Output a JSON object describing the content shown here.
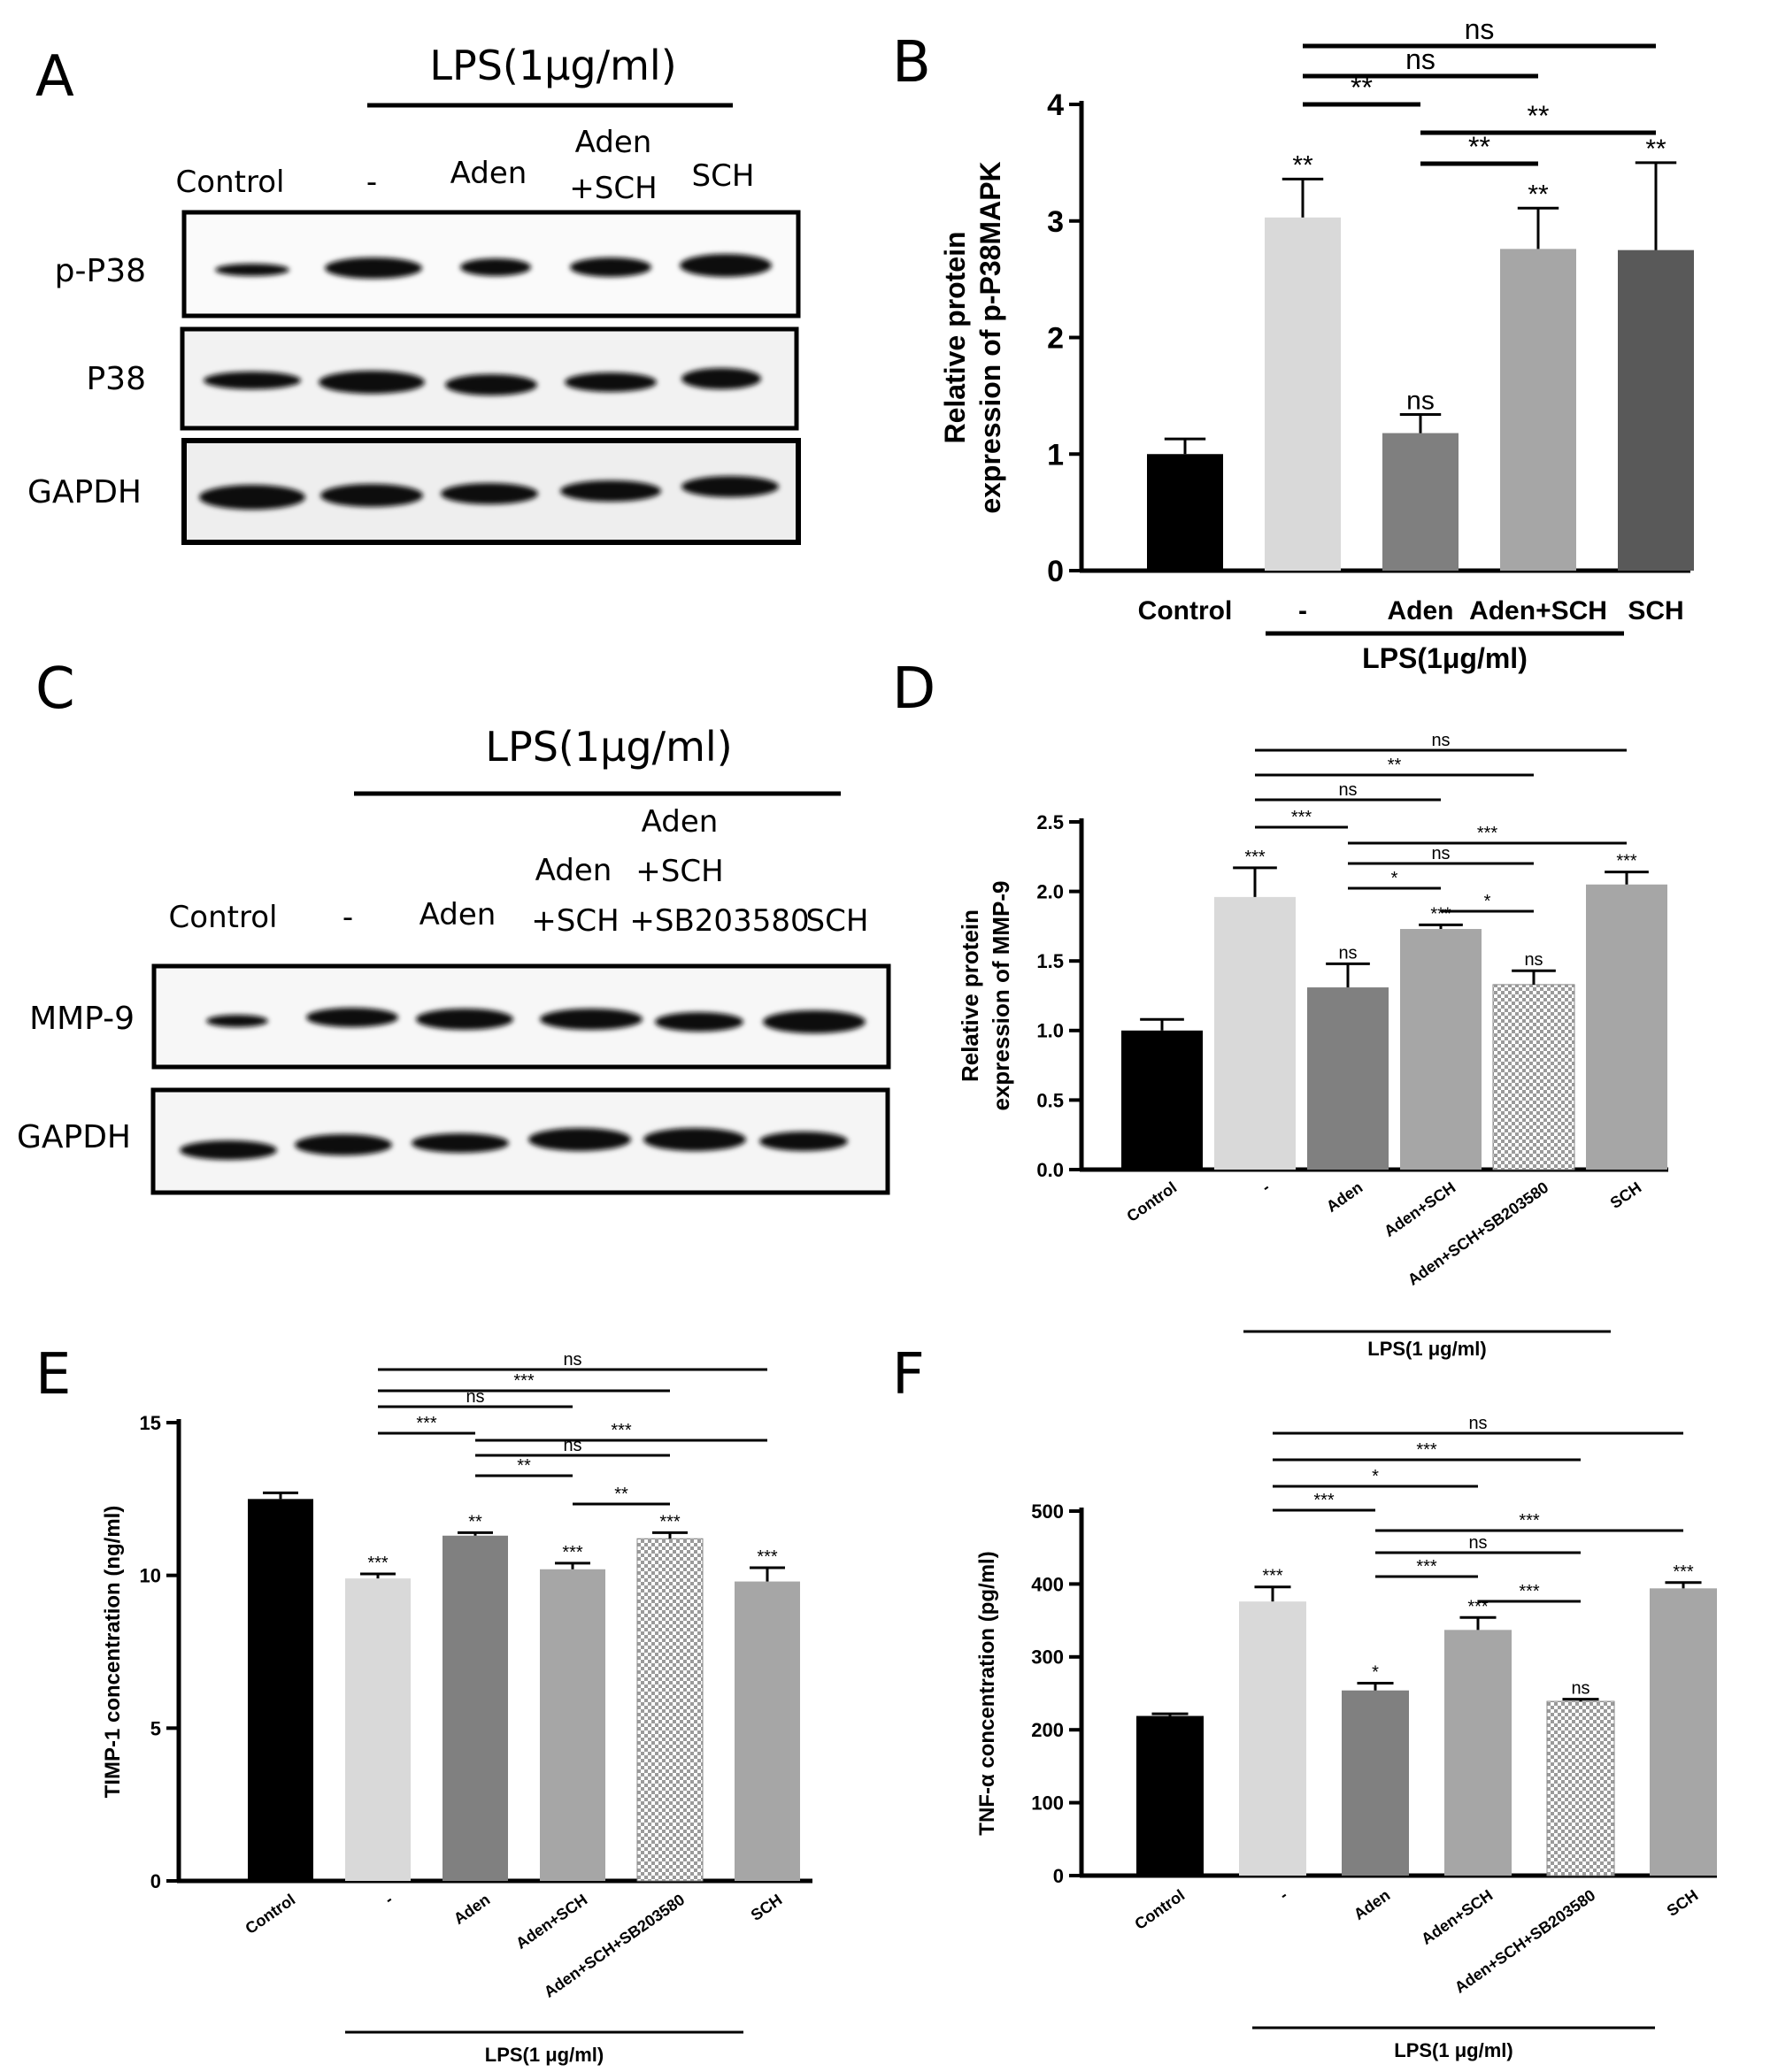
{
  "panels": {
    "A": "A",
    "B": "B",
    "C": "C",
    "D": "D",
    "E": "E",
    "F": "F"
  },
  "blotA": {
    "lps_label": "LPS(1μg/ml)",
    "columns": [
      "Control",
      "-",
      "Aden",
      "Aden",
      "+SCH",
      "SCH"
    ],
    "rows": [
      "p-P38",
      "P38",
      "GAPDH"
    ]
  },
  "blotC": {
    "lps_label": "LPS(1μg/ml)",
    "col_control": "Control",
    "col_minus": "-",
    "col_aden": "Aden",
    "col_aden_sch_1": "Aden",
    "col_aden_sch_2": "+SCH",
    "col_triple_1": "Aden",
    "col_triple_2": "+SCH",
    "col_triple_3": "+SB203580",
    "col_sch": "SCH",
    "rows": [
      "MMP-9",
      "GAPDH"
    ]
  },
  "chart_data": [
    {
      "id": "B",
      "type": "bar",
      "categories": [
        "Control",
        "-",
        "Aden",
        "Aden+SCH",
        "SCH"
      ],
      "values": [
        1.0,
        3.03,
        1.18,
        2.76,
        2.75
      ],
      "errors": [
        0.13,
        0.33,
        0.16,
        0.35,
        0.75
      ],
      "bar_colors": [
        "#000000",
        "#d9d9d9",
        "#7f7f7f",
        "#a6a6a6",
        "#595959"
      ],
      "bar_marks": [
        "",
        "**",
        "ns",
        "**",
        "**"
      ],
      "ylabel_1": "Relative protein",
      "ylabel_2": "expression of p-P38MAPK",
      "ylim": [
        0,
        4
      ],
      "yticks": [
        "0",
        "1",
        "2",
        "3",
        "4"
      ],
      "group_label": "LPS(1μg/ml)",
      "brackets": [
        {
          "from": 1,
          "to": 4,
          "label": "ns"
        },
        {
          "from": 1,
          "to": 3,
          "label": "ns"
        },
        {
          "from": 1,
          "to": 2,
          "label": "**"
        },
        {
          "from": 2,
          "to": 4,
          "label": "**"
        },
        {
          "from": 2,
          "to": 3,
          "label": "**"
        }
      ]
    },
    {
      "id": "D",
      "type": "bar",
      "categories": [
        "Control",
        "-",
        "Aden",
        "Aden+SCH",
        "Aden+SCH+SB203580",
        "SCH"
      ],
      "values": [
        1.0,
        1.96,
        1.31,
        1.73,
        1.33,
        2.05
      ],
      "errors": [
        0.08,
        0.21,
        0.17,
        0.03,
        0.1,
        0.09
      ],
      "bar_colors": [
        "#000000",
        "#d9d9d9",
        "#808080",
        "#a6a6a6",
        "checker",
        "#a6a6a6"
      ],
      "bar_marks": [
        "",
        "***",
        "ns",
        "***",
        "ns",
        "***"
      ],
      "ylabel_1": "Relative protein",
      "ylabel_2": "expression of MMP-9",
      "ylim": [
        0,
        2.5
      ],
      "yticks": [
        "0.0",
        "0.5",
        "1.0",
        "1.5",
        "2.0",
        "2.5"
      ],
      "group_label": "LPS(1 μg/ml)",
      "brackets": [
        {
          "from": 1,
          "to": 5,
          "label": "ns"
        },
        {
          "from": 1,
          "to": 4,
          "label": "**"
        },
        {
          "from": 1,
          "to": 3,
          "label": "ns"
        },
        {
          "from": 1,
          "to": 2,
          "label": "***"
        },
        {
          "from": 2,
          "to": 5,
          "label": "***"
        },
        {
          "from": 2,
          "to": 4,
          "label": "ns"
        },
        {
          "from": 2,
          "to": 3,
          "label": "*"
        },
        {
          "from": 3,
          "to": 4,
          "label": "*"
        }
      ]
    },
    {
      "id": "E",
      "type": "bar",
      "categories": [
        "Control",
        "-",
        "Aden",
        "Aden+SCH",
        "Aden+SCH+SB203580",
        "SCH"
      ],
      "values": [
        12.5,
        9.9,
        11.3,
        10.2,
        11.2,
        9.8
      ],
      "errors": [
        0.2,
        0.15,
        0.1,
        0.2,
        0.2,
        0.45
      ],
      "bar_colors": [
        "#000000",
        "#d9d9d9",
        "#808080",
        "#a6a6a6",
        "checker",
        "#a6a6a6"
      ],
      "bar_marks": [
        "",
        "***",
        "**",
        "***",
        "***",
        "***"
      ],
      "ylabel": "TIMP-1 concentration (ng/ml)",
      "ylim": [
        0,
        15
      ],
      "yticks": [
        "0",
        "5",
        "10",
        "15"
      ],
      "group_label": "LPS(1 μg/ml)",
      "brackets": [
        {
          "from": 1,
          "to": 5,
          "label": "ns"
        },
        {
          "from": 1,
          "to": 4,
          "label": "***"
        },
        {
          "from": 1,
          "to": 3,
          "label": "ns"
        },
        {
          "from": 1,
          "to": 2,
          "label": "***"
        },
        {
          "from": 2,
          "to": 5,
          "label": "***"
        },
        {
          "from": 2,
          "to": 4,
          "label": "ns"
        },
        {
          "from": 2,
          "to": 3,
          "label": "**"
        },
        {
          "from": 3,
          "to": 4,
          "label": "**"
        }
      ]
    },
    {
      "id": "F",
      "type": "bar",
      "categories": [
        "Control",
        "-",
        "Aden",
        "Aden+SCH",
        "Aden+SCH+SB203580",
        "SCH"
      ],
      "values": [
        219,
        376,
        254,
        337,
        239,
        394
      ],
      "errors": [
        3,
        20,
        10,
        17,
        3,
        8
      ],
      "bar_colors": [
        "#000000",
        "#d9d9d9",
        "#808080",
        "#a6a6a6",
        "checker",
        "#a6a6a6"
      ],
      "bar_marks": [
        "",
        "***",
        "*",
        "***",
        "ns",
        "***"
      ],
      "ylabel": "TNF-α concentration (pg/ml)",
      "ylim": [
        0,
        500
      ],
      "yticks": [
        "0",
        "100",
        "200",
        "300",
        "400",
        "500"
      ],
      "group_label": "LPS(1 μg/ml)",
      "brackets": [
        {
          "from": 1,
          "to": 5,
          "label": "ns"
        },
        {
          "from": 1,
          "to": 4,
          "label": "***"
        },
        {
          "from": 1,
          "to": 3,
          "label": "*"
        },
        {
          "from": 1,
          "to": 2,
          "label": "***"
        },
        {
          "from": 2,
          "to": 5,
          "label": "***"
        },
        {
          "from": 2,
          "to": 4,
          "label": "ns"
        },
        {
          "from": 2,
          "to": 3,
          "label": "***"
        },
        {
          "from": 3,
          "to": 4,
          "label": "***"
        }
      ]
    }
  ]
}
